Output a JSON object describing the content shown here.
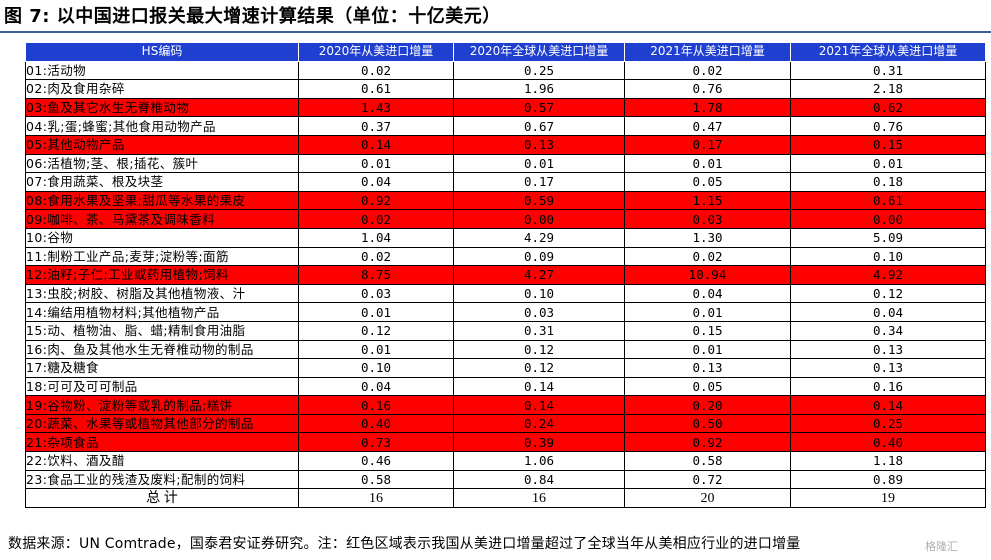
{
  "title": "图 7:  以中国进口报关最大增速计算结果（单位：十亿美元）",
  "columns": [
    "HS编码",
    "2020年从美进口增量",
    "2020年全球从美进口增量",
    "2021年从美进口增量",
    "2021年全球从美进口增量"
  ],
  "highlight_color": "#ff0000",
  "header_color": "#1f3fd0",
  "rows": [
    {
      "name": "01:活动物",
      "v": [
        "0.02",
        "0.25",
        "0.02",
        "0.31"
      ],
      "hl": false
    },
    {
      "name": "02:肉及食用杂碎",
      "v": [
        "0.61",
        "1.96",
        "0.76",
        "2.18"
      ],
      "hl": false
    },
    {
      "name": "03:鱼及其它水生无脊椎动物",
      "v": [
        "1.43",
        "0.57",
        "1.78",
        "0.62"
      ],
      "hl": true
    },
    {
      "name": "04:乳;蛋;蜂蜜;其他食用动物产品",
      "v": [
        "0.37",
        "0.67",
        "0.47",
        "0.76"
      ],
      "hl": false
    },
    {
      "name": "05:其他动物产品",
      "v": [
        "0.14",
        "0.13",
        "0.17",
        "0.15"
      ],
      "hl": true
    },
    {
      "name": "06:活植物;茎、根;插花、簇叶",
      "v": [
        "0.01",
        "0.01",
        "0.01",
        "0.01"
      ],
      "hl": false
    },
    {
      "name": "07:食用蔬菜、根及块茎",
      "v": [
        "0.04",
        "0.17",
        "0.05",
        "0.18"
      ],
      "hl": false
    },
    {
      "name": "08:食用水果及坚果;甜瓜等水果的果皮",
      "v": [
        "0.92",
        "0.59",
        "1.15",
        "0.61"
      ],
      "hl": true
    },
    {
      "name": "09:咖啡、茶、马黛茶及调味香料",
      "v": [
        "0.02",
        "0.00",
        "0.03",
        "0.00"
      ],
      "hl": true
    },
    {
      "name": "10:谷物",
      "v": [
        "1.04",
        "4.29",
        "1.30",
        "5.09"
      ],
      "hl": false
    },
    {
      "name": "11:制粉工业产品;麦芽;淀粉等;面筋",
      "v": [
        "0.02",
        "0.09",
        "0.02",
        "0.10"
      ],
      "hl": false
    },
    {
      "name": "12:油籽;子仁;工业或药用植物;饲料",
      "v": [
        "8.75",
        "4.27",
        "10.94",
        "4.92"
      ],
      "hl": true
    },
    {
      "name": "13:虫胶;树胶、树脂及其他植物液、汁",
      "v": [
        "0.03",
        "0.10",
        "0.04",
        "0.12"
      ],
      "hl": false
    },
    {
      "name": "14:编结用植物材料;其他植物产品",
      "v": [
        "0.01",
        "0.03",
        "0.01",
        "0.04"
      ],
      "hl": false
    },
    {
      "name": "15:动、植物油、脂、蜡;精制食用油脂",
      "v": [
        "0.12",
        "0.31",
        "0.15",
        "0.34"
      ],
      "hl": false
    },
    {
      "name": "16:肉、鱼及其他水生无脊椎动物的制品",
      "v": [
        "0.01",
        "0.12",
        "0.01",
        "0.13"
      ],
      "hl": false
    },
    {
      "name": "17:糖及糖食",
      "v": [
        "0.10",
        "0.12",
        "0.13",
        "0.13"
      ],
      "hl": false
    },
    {
      "name": "18:可可及可可制品",
      "v": [
        "0.04",
        "0.14",
        "0.05",
        "0.16"
      ],
      "hl": false
    },
    {
      "name": "19:谷物粉、淀粉等或乳的制品;糕饼",
      "v": [
        "0.16",
        "0.14",
        "0.20",
        "0.14"
      ],
      "hl": true
    },
    {
      "name": "20:蔬菜、水果等或植物其他部分的制品",
      "v": [
        "0.40",
        "0.24",
        "0.50",
        "0.25"
      ],
      "hl": true
    },
    {
      "name": "21:杂项食品",
      "v": [
        "0.73",
        "0.39",
        "0.92",
        "0.40"
      ],
      "hl": true
    },
    {
      "name": "22:饮料、酒及醋",
      "v": [
        "0.46",
        "1.06",
        "0.58",
        "1.18"
      ],
      "hl": false
    },
    {
      "name": "23:食品工业的残渣及废料;配制的饲料",
      "v": [
        "0.58",
        "0.84",
        "0.72",
        "0.89"
      ],
      "hl": false
    }
  ],
  "total": {
    "label": "总  计",
    "v": [
      "16",
      "16",
      "20",
      "19"
    ]
  },
  "source": "数据来源：UN Comtrade，国泰君安证券研究。注：红色区域表示我国从美进口增量超过了全球当年从美相应行业的进口增量",
  "watermark": "格隆汇"
}
